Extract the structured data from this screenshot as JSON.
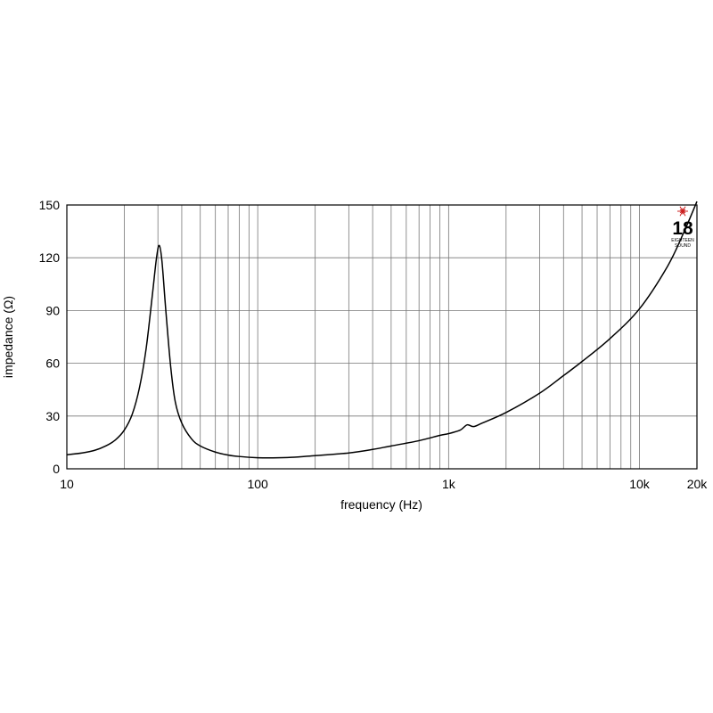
{
  "chart_data": {
    "type": "line",
    "xlabel": "frequency (Hz)",
    "ylabel": "impedance (Ω)",
    "x_scale": "log",
    "xlim": [
      10,
      20000
    ],
    "ylim": [
      0,
      150
    ],
    "grid": true,
    "x_ticks": [
      {
        "value": 10,
        "label": "10"
      },
      {
        "value": 100,
        "label": "100"
      },
      {
        "value": 1000,
        "label": "1k"
      },
      {
        "value": 10000,
        "label": "10k"
      },
      {
        "value": 20000,
        "label": "20k"
      }
    ],
    "y_ticks": [
      {
        "value": 0,
        "label": "0"
      },
      {
        "value": 30,
        "label": "30"
      },
      {
        "value": 60,
        "label": "60"
      },
      {
        "value": 90,
        "label": "90"
      },
      {
        "value": 120,
        "label": "120"
      },
      {
        "value": 150,
        "label": "150"
      }
    ],
    "series": [
      {
        "color": "#000000",
        "points": [
          [
            10,
            8
          ],
          [
            12,
            9
          ],
          [
            14,
            10.5
          ],
          [
            16,
            13
          ],
          [
            18,
            16.5
          ],
          [
            20,
            22
          ],
          [
            22,
            31
          ],
          [
            24,
            46
          ],
          [
            26,
            68
          ],
          [
            28,
            98
          ],
          [
            29.5,
            120
          ],
          [
            30.5,
            127
          ],
          [
            31.5,
            118
          ],
          [
            33,
            90
          ],
          [
            35,
            58
          ],
          [
            37,
            38
          ],
          [
            40,
            26
          ],
          [
            45,
            17
          ],
          [
            50,
            13
          ],
          [
            60,
            9.5
          ],
          [
            70,
            7.8
          ],
          [
            80,
            7
          ],
          [
            100,
            6.3
          ],
          [
            120,
            6.2
          ],
          [
            150,
            6.5
          ],
          [
            200,
            7.5
          ],
          [
            300,
            9
          ],
          [
            400,
            11
          ],
          [
            500,
            13
          ],
          [
            700,
            16
          ],
          [
            900,
            19
          ],
          [
            1000,
            20
          ],
          [
            1150,
            22
          ],
          [
            1250,
            25
          ],
          [
            1350,
            24
          ],
          [
            1500,
            26
          ],
          [
            2000,
            32
          ],
          [
            3000,
            43
          ],
          [
            4000,
            53
          ],
          [
            5000,
            61
          ],
          [
            7000,
            74
          ],
          [
            10000,
            91
          ],
          [
            14000,
            115
          ],
          [
            17000,
            134
          ],
          [
            20000,
            152
          ]
        ]
      }
    ]
  },
  "logo": {
    "number": "18",
    "small_lines": [
      "EIGHTEEN",
      "SOUND"
    ],
    "mark_color": "#cc1f1f"
  }
}
